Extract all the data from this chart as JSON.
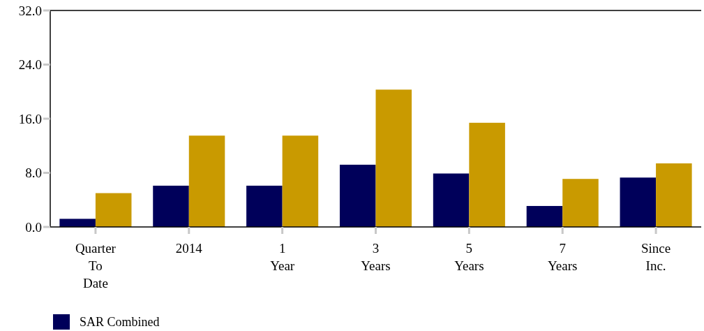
{
  "chart_data": {
    "type": "bar",
    "categories": [
      "Quarter\nTo\nDate",
      "2014",
      "1\nYear",
      "3\nYears",
      "5\nYears",
      "7\nYears",
      "Since\nInc."
    ],
    "series": [
      {
        "name": "SAR Combined",
        "color": "#00005a",
        "values": [
          1.2,
          6.1,
          6.1,
          9.2,
          7.9,
          3.1,
          7.3
        ]
      },
      {
        "color": "#c99a00",
        "values": [
          5.0,
          13.5,
          13.5,
          20.3,
          15.4,
          7.1,
          9.4
        ]
      }
    ],
    "ylim": [
      0,
      32
    ],
    "yticks": [
      {
        "value": 0,
        "label": "0.0"
      },
      {
        "value": 8,
        "label": "8.0"
      },
      {
        "value": 16,
        "label": "16.0"
      },
      {
        "value": 24,
        "label": "24.0"
      },
      {
        "value": 32,
        "label": "32.0"
      }
    ],
    "grid": false,
    "legend": "bottom left"
  }
}
